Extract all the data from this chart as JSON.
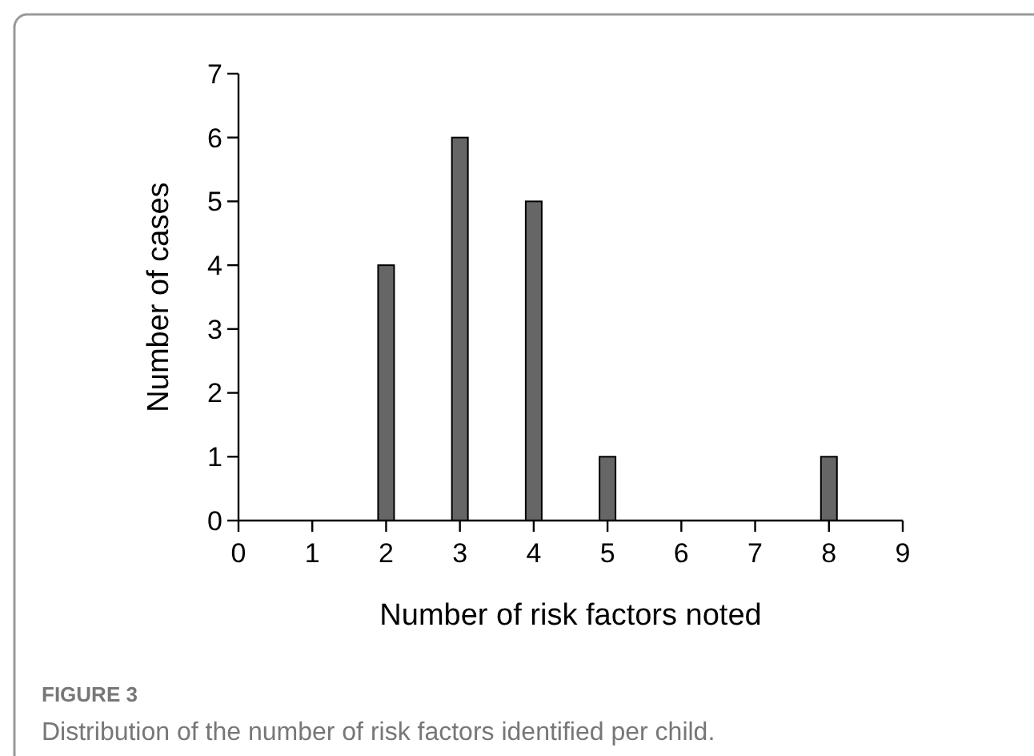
{
  "chart_data": {
    "type": "bar",
    "xlabel": "Number of risk factors noted",
    "ylabel": "Number of cases",
    "x": [
      0,
      1,
      2,
      3,
      4,
      5,
      6,
      7,
      8
    ],
    "values": [
      0,
      0,
      4,
      6,
      5,
      1,
      0,
      0,
      1
    ],
    "color": "#666666",
    "xlim": [
      0,
      9
    ],
    "xticks": [
      0,
      1,
      2,
      3,
      4,
      5,
      6,
      7,
      8,
      9
    ],
    "ylim": [
      0,
      7
    ],
    "yticks": [
      0,
      1,
      2,
      3,
      4,
      5,
      6,
      7
    ],
    "grid": false,
    "annotations": [
      "FIGURE 3",
      "Distribution of the number of risk factors identified per child."
    ]
  }
}
